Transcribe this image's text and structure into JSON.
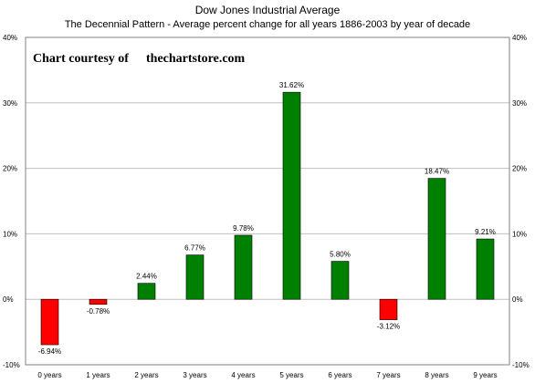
{
  "chart_data": {
    "type": "bar",
    "title": "Dow Jones Industrial Average",
    "subtitle": "The Decennial Pattern - Average percent change for all years 1886-2003 by year of decade",
    "courtesy_label": "Chart courtesy of",
    "courtesy_site": "thechartstore.com",
    "categories": [
      "0 years",
      "1 years",
      "2 years",
      "3 years",
      "4 years",
      "5 years",
      "6 years",
      "7 years",
      "8 years",
      "9 years"
    ],
    "values": [
      -6.94,
      -0.78,
      2.44,
      6.77,
      9.78,
      31.62,
      5.8,
      -3.12,
      18.47,
      9.21
    ],
    "data_labels": [
      "-6.94%",
      "-0.78%",
      "2.44%",
      "6.77%",
      "9.78%",
      "31.62%",
      "5.80%",
      "-3.12%",
      "18.47%",
      "9.21%"
    ],
    "yticks": [
      -10,
      0,
      10,
      20,
      30,
      40
    ],
    "ytick_labels": [
      "-10%",
      "0%",
      "10%",
      "20%",
      "30%",
      "40%"
    ],
    "ylim": [
      -10,
      40
    ],
    "grid": true,
    "colors": {
      "positive": "#008000",
      "negative": "#ff0000",
      "grid": "#c0c0c0",
      "border": "#808080"
    }
  }
}
